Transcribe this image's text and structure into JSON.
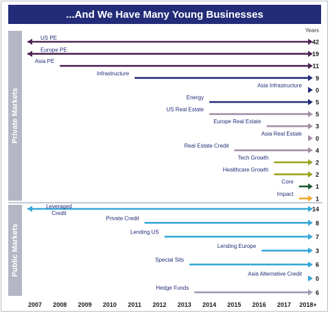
{
  "title": "...And We Have Many Young Businesses",
  "colors": {
    "title_bg": "#232c78",
    "side_label_bg": "#b4b6c4",
    "label_text": "#232c78"
  },
  "chart_data": {
    "type": "timeline-arrows",
    "title": "...And We Have Many Young Businesses",
    "x_ticks": [
      "2007",
      "2008",
      "2009",
      "2010",
      "2011",
      "2012",
      "2013",
      "2014",
      "2015",
      "2016",
      "2017",
      "2018+"
    ],
    "right_column_label": "Years",
    "groups": [
      {
        "label": "Private Markets",
        "rows": [
          {
            "name": "US PE",
            "start": 2007,
            "years": "42",
            "extends_before": true,
            "color": "#4e2455"
          },
          {
            "name": "Europe PE",
            "start": 2007,
            "years": "19",
            "extends_before": true,
            "color": "#4e2455"
          },
          {
            "name": "Asia PE",
            "start": 2008,
            "years": "11",
            "extends_before": false,
            "color": "#4e2455"
          },
          {
            "name": "Infrastructure",
            "start": 2011,
            "years": "9",
            "extends_before": false,
            "color": "#232c78"
          },
          {
            "name": "Asia Infrastructure",
            "start": 2018.1,
            "years": "0",
            "extends_before": false,
            "color": "#232c78"
          },
          {
            "name": "Energy",
            "start": 2014,
            "years": "5",
            "extends_before": false,
            "color": "#232c78"
          },
          {
            "name": "US Real Estate",
            "start": 2014,
            "years": "5",
            "extends_before": false,
            "color": "#a58fa8"
          },
          {
            "name": "Europe Real Estate",
            "start": 2016.3,
            "years": "3",
            "extends_before": false,
            "color": "#a58fa8"
          },
          {
            "name": "Asia Real Estate",
            "start": 2018.1,
            "years": "0",
            "extends_before": false,
            "color": "#a58fa8"
          },
          {
            "name": "Real Estate Credit",
            "start": 2015,
            "years": "4",
            "extends_before": false,
            "color": "#a58fa8"
          },
          {
            "name": "Tech Growth",
            "start": 2016.6,
            "years": "2",
            "extends_before": false,
            "color": "#9aa31a"
          },
          {
            "name": "Healthcare Growth",
            "start": 2016.6,
            "years": "2",
            "extends_before": false,
            "color": "#9aa31a"
          },
          {
            "name": "Core",
            "start": 2017.6,
            "years": "1",
            "extends_before": false,
            "color": "#1e5a32"
          },
          {
            "name": "Impact",
            "start": 2017.6,
            "years": "1",
            "extends_before": false,
            "color": "#f0a830"
          }
        ]
      },
      {
        "label": "Public Markets",
        "rows": [
          {
            "name": "Leveraged Credit",
            "start": 2007,
            "years": "14",
            "extends_before": true,
            "color": "#37a7d9"
          },
          {
            "name": "Private Credit",
            "start": 2011.4,
            "years": "8",
            "extends_before": false,
            "color": "#37a7d9"
          },
          {
            "name": "Lending US",
            "start": 2012.2,
            "years": "7",
            "extends_before": false,
            "color": "#37a7d9"
          },
          {
            "name": "Lending Europe",
            "start": 2016.1,
            "years": "3",
            "extends_before": false,
            "color": "#37a7d9"
          },
          {
            "name": "Special Sits",
            "start": 2013.2,
            "years": "6",
            "extends_before": false,
            "color": "#37a7d9"
          },
          {
            "name": "Asia Alternative Credit",
            "start": 2018.1,
            "years": "0",
            "extends_before": false,
            "color": "#37a7d9"
          },
          {
            "name": "Hedge Funds",
            "start": 2013.4,
            "years": "6",
            "extends_before": false,
            "color": "#9b9bb5"
          }
        ]
      }
    ]
  }
}
